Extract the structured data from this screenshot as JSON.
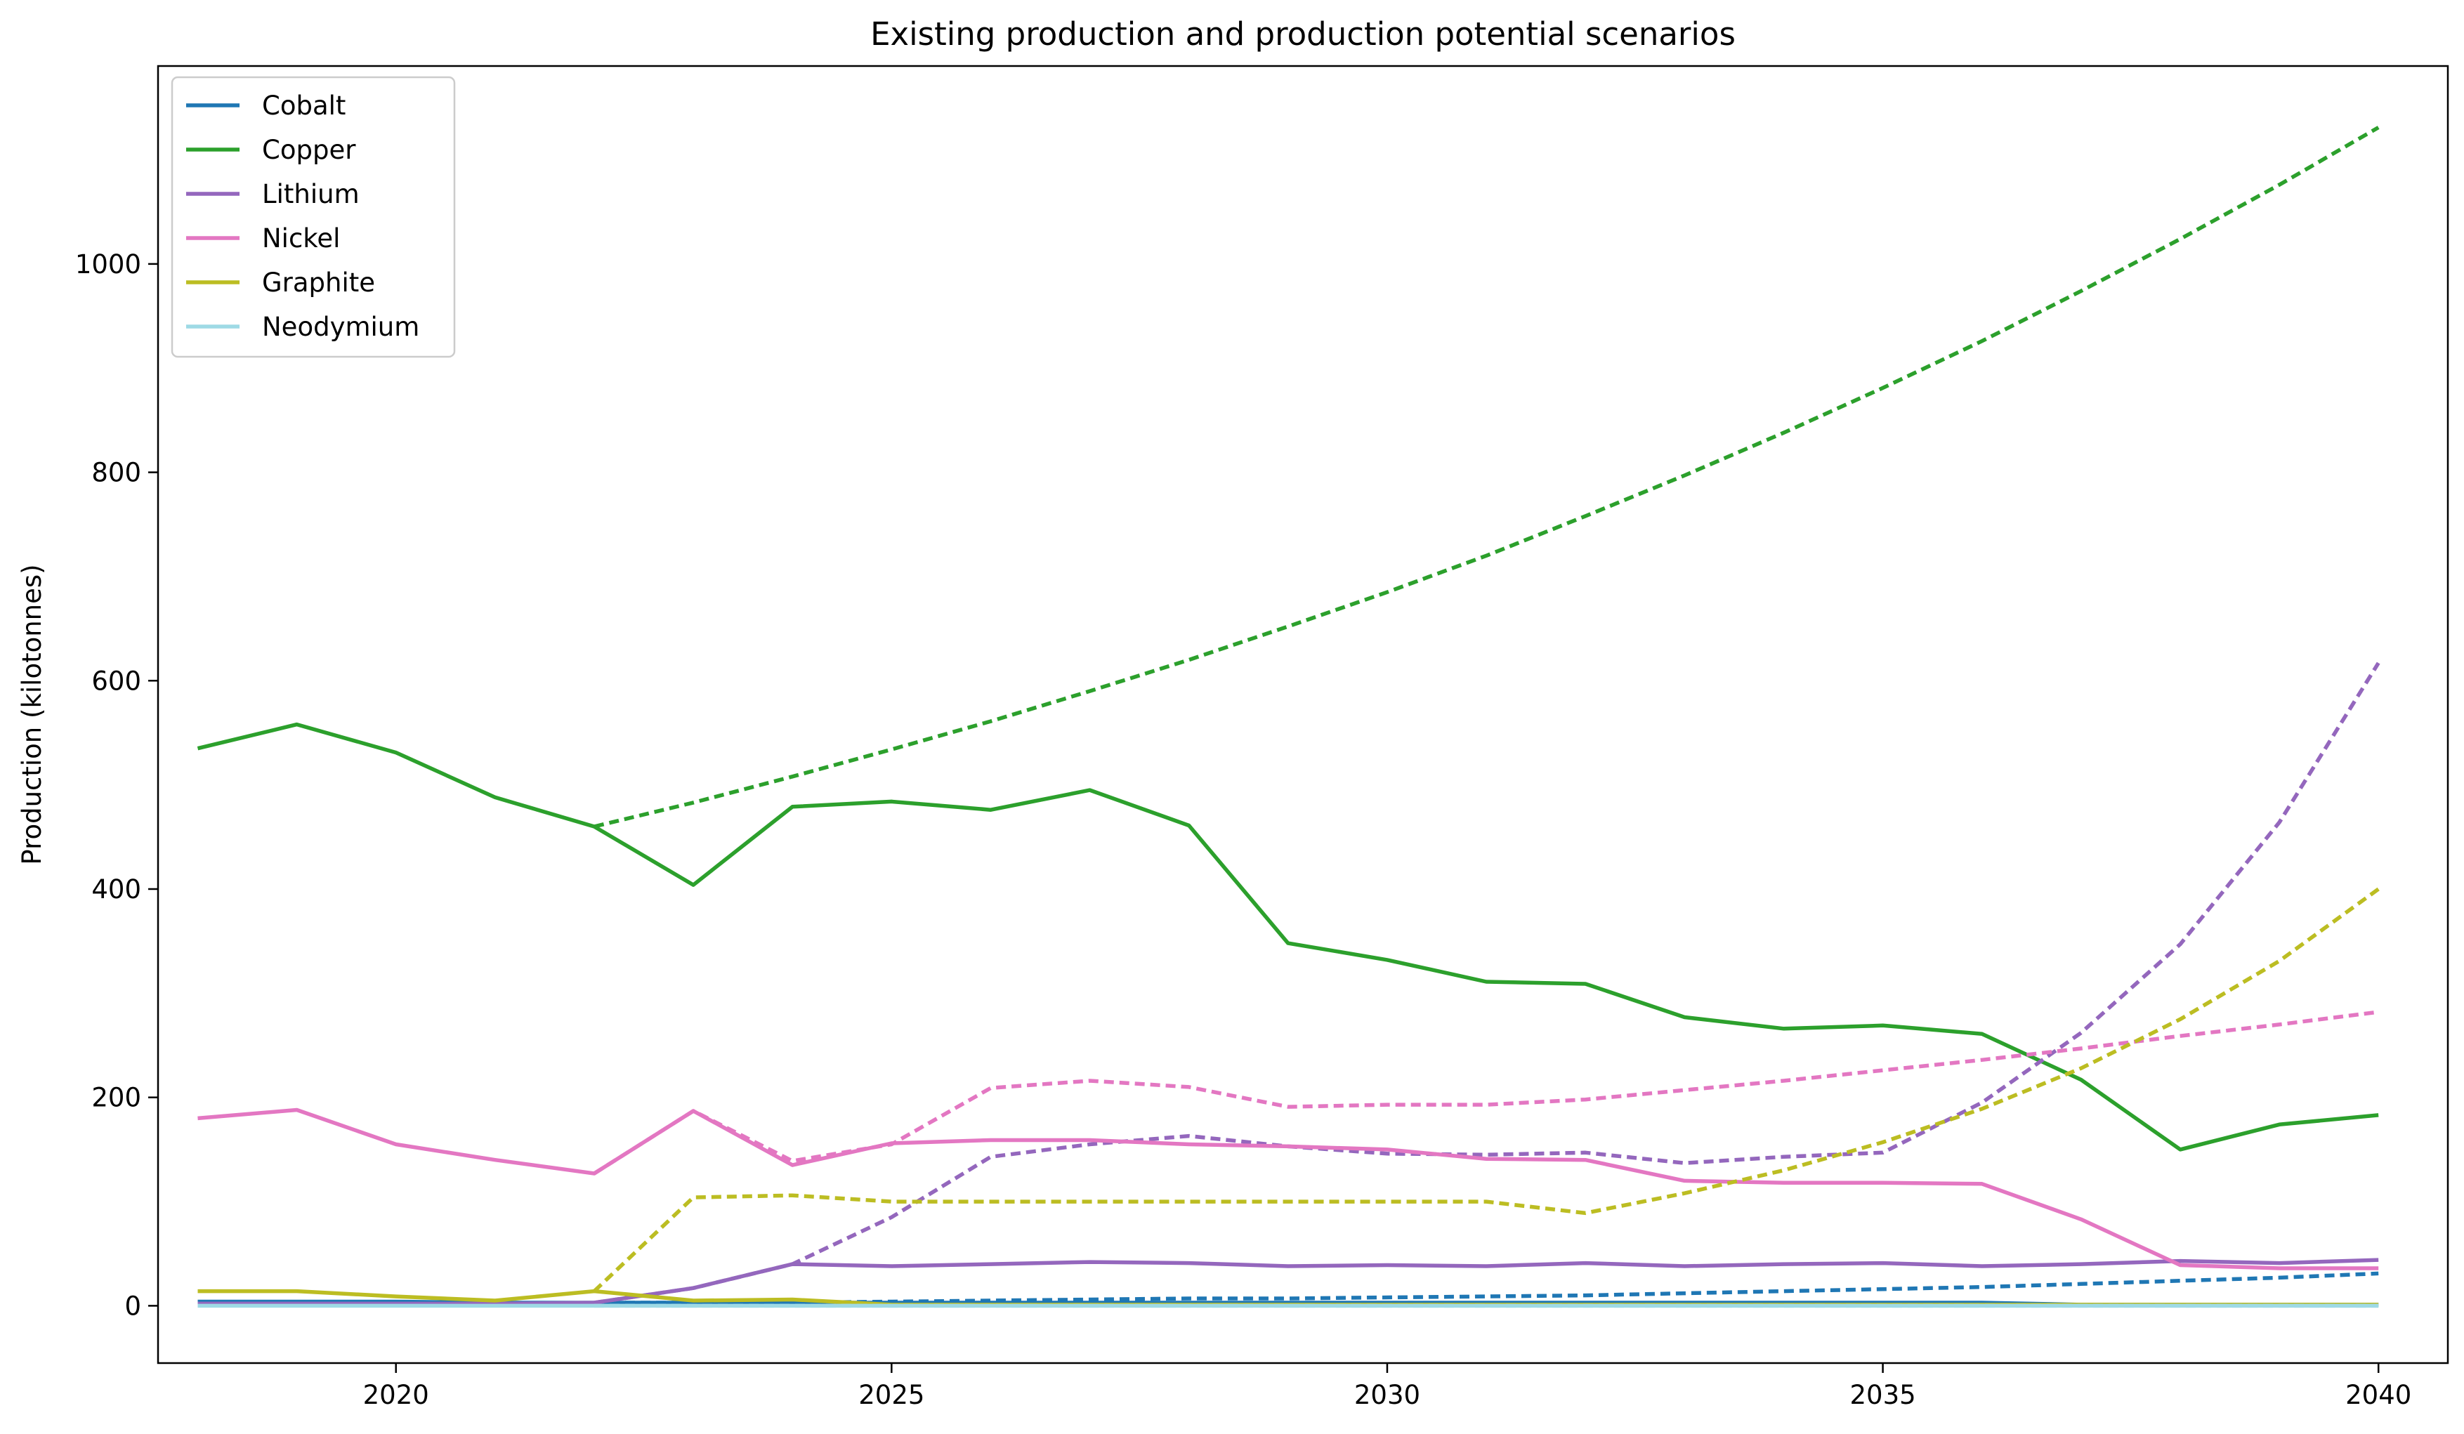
{
  "chart_data": {
    "type": "line",
    "title": "Existing production and production potential scenarios",
    "xlabel": "",
    "ylabel": "Production (kilotonnes)",
    "xlim": [
      2017.6,
      2040.7
    ],
    "ylim": [
      -55,
      1190
    ],
    "xticks": [
      2020,
      2025,
      2030,
      2035,
      2040
    ],
    "yticks": [
      0,
      200,
      400,
      600,
      800,
      1000
    ],
    "grid": false,
    "legend_position": "top-left",
    "series": [
      {
        "name": "Cobalt",
        "color": "#1f77b4",
        "existing": {
          "x": [
            2018,
            2019,
            2020,
            2021,
            2022,
            2023,
            2024,
            2025,
            2026,
            2027,
            2028,
            2029,
            2030,
            2031,
            2032,
            2033,
            2034,
            2035,
            2036,
            2037,
            2038,
            2039,
            2040
          ],
          "y": [
            4,
            4,
            4,
            3,
            3,
            3,
            3,
            3,
            3,
            3,
            3,
            3,
            3,
            3,
            3,
            3,
            3,
            3,
            3,
            1,
            1,
            1,
            1
          ]
        },
        "potential": {
          "x": [
            2022,
            2023,
            2024,
            2025,
            2026,
            2027,
            2028,
            2029,
            2030,
            2031,
            2032,
            2033,
            2034,
            2035,
            2036,
            2037,
            2038,
            2039,
            2040
          ],
          "y": [
            3,
            3,
            3,
            4,
            5,
            6,
            7,
            7,
            8,
            9,
            10,
            12,
            14,
            16,
            18,
            21,
            24,
            27,
            31
          ]
        }
      },
      {
        "name": "Copper",
        "color": "#2ca02c",
        "existing": {
          "x": [
            2018,
            2019,
            2020,
            2021,
            2022,
            2023,
            2024,
            2025,
            2026,
            2027,
            2028,
            2029,
            2030,
            2031,
            2032,
            2033,
            2034,
            2035,
            2036,
            2037,
            2038,
            2039,
            2040
          ],
          "y": [
            535,
            558,
            531,
            488,
            460,
            404,
            479,
            484,
            476,
            495,
            461,
            348,
            332,
            311,
            309,
            277,
            266,
            269,
            261,
            217,
            150,
            174,
            183
          ]
        },
        "potential": {
          "x": [
            2022,
            2023,
            2024,
            2025,
            2026,
            2027,
            2028,
            2029,
            2030,
            2031,
            2032,
            2033,
            2034,
            2035,
            2036,
            2037,
            2038,
            2039,
            2040
          ],
          "y": [
            460,
            483,
            508,
            534,
            561,
            590,
            620,
            652,
            685,
            720,
            758,
            797,
            838,
            881,
            926,
            974,
            1024,
            1076,
            1131
          ]
        }
      },
      {
        "name": "Lithium",
        "color": "#9467bd",
        "existing": {
          "x": [
            2018,
            2019,
            2020,
            2021,
            2022,
            2023,
            2024,
            2025,
            2026,
            2027,
            2028,
            2029,
            2030,
            2031,
            2032,
            2033,
            2034,
            2035,
            2036,
            2037,
            2038,
            2039,
            2040
          ],
          "y": [
            2,
            2,
            2,
            2,
            3,
            17,
            40,
            38,
            40,
            42,
            41,
            38,
            39,
            38,
            41,
            38,
            40,
            41,
            38,
            40,
            43,
            41,
            44
          ]
        },
        "potential": {
          "x": [
            2022,
            2023,
            2024,
            2025,
            2026,
            2027,
            2028,
            2029,
            2030,
            2031,
            2032,
            2033,
            2034,
            2035,
            2036,
            2037,
            2038,
            2039,
            2040
          ],
          "y": [
            3,
            17,
            40,
            85,
            143,
            155,
            163,
            153,
            146,
            145,
            147,
            137,
            143,
            147,
            195,
            262,
            347,
            464,
            617
          ]
        }
      },
      {
        "name": "Nickel",
        "color": "#e377c2",
        "existing": {
          "x": [
            2018,
            2019,
            2020,
            2021,
            2022,
            2023,
            2024,
            2025,
            2026,
            2027,
            2028,
            2029,
            2030,
            2031,
            2032,
            2033,
            2034,
            2035,
            2036,
            2037,
            2038,
            2039,
            2040
          ],
          "y": [
            180,
            188,
            155,
            140,
            127,
            187,
            135,
            156,
            159,
            159,
            155,
            153,
            150,
            141,
            140,
            120,
            118,
            118,
            117,
            83,
            39,
            36,
            36
          ]
        },
        "potential": {
          "x": [
            2022,
            2023,
            2024,
            2025,
            2026,
            2027,
            2028,
            2029,
            2030,
            2031,
            2032,
            2033,
            2034,
            2035,
            2036,
            2037,
            2038,
            2039,
            2040
          ],
          "y": [
            127,
            187,
            139,
            155,
            209,
            216,
            210,
            191,
            193,
            193,
            198,
            207,
            216,
            226,
            236,
            247,
            259,
            270,
            282
          ]
        }
      },
      {
        "name": "Graphite",
        "color": "#bcbd22",
        "existing": {
          "x": [
            2018,
            2019,
            2020,
            2021,
            2022,
            2023,
            2024,
            2025,
            2026,
            2027,
            2028,
            2029,
            2030,
            2031,
            2032,
            2033,
            2034,
            2035,
            2036,
            2037,
            2038,
            2039,
            2040
          ],
          "y": [
            14,
            14,
            9,
            5,
            14,
            5,
            6,
            1,
            1,
            1,
            1,
            1,
            1,
            1,
            1,
            1,
            1,
            1,
            1,
            1,
            1,
            1,
            1
          ]
        },
        "potential": {
          "x": [
            2022,
            2023,
            2024,
            2025,
            2026,
            2027,
            2028,
            2029,
            2030,
            2031,
            2032,
            2033,
            2034,
            2035,
            2036,
            2037,
            2038,
            2039,
            2040
          ],
          "y": [
            14,
            104,
            106,
            100,
            100,
            100,
            100,
            100,
            100,
            100,
            89,
            108,
            130,
            157,
            189,
            228,
            275,
            331,
            400
          ]
        }
      },
      {
        "name": "Neodymium",
        "color": "#9edae5",
        "existing": {
          "x": [
            2018,
            2019,
            2020,
            2021,
            2022,
            2023,
            2024,
            2025,
            2026,
            2027,
            2028,
            2029,
            2030,
            2031,
            2032,
            2033,
            2034,
            2035,
            2036,
            2037,
            2038,
            2039,
            2040
          ],
          "y": [
            0,
            0,
            0,
            0,
            0,
            0,
            0,
            0,
            0,
            0,
            0,
            0,
            0,
            0,
            0,
            0,
            0,
            0,
            0,
            0,
            0,
            0,
            0
          ]
        },
        "potential": {
          "x": [
            2022,
            2023,
            2024,
            2025,
            2026,
            2027,
            2028,
            2029,
            2030,
            2031,
            2032,
            2033,
            2034,
            2035,
            2036,
            2037,
            2038,
            2039,
            2040
          ],
          "y": [
            0,
            0,
            0,
            0,
            0,
            0,
            0,
            0,
            0,
            0,
            0,
            0,
            0,
            0,
            0,
            0,
            0,
            0,
            0
          ]
        }
      }
    ]
  }
}
